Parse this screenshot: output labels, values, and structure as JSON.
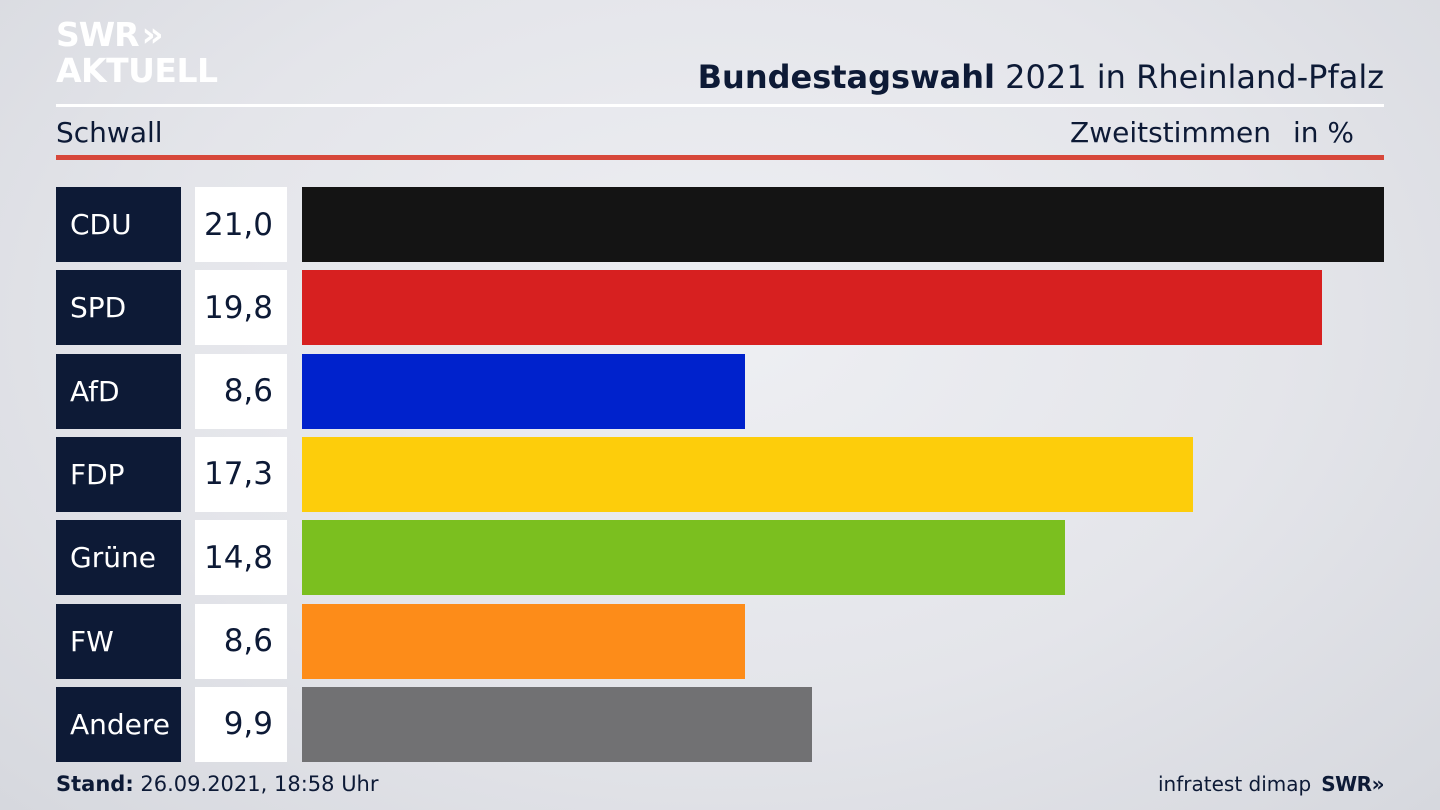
{
  "logo": {
    "line1": "SWR",
    "line1_chevrons": "»",
    "line2": "AKTUELL"
  },
  "header": {
    "title_bold": "Bundestagswahl",
    "title_rest": "2021 in Rheinland-Pfalz",
    "location": "Schwall",
    "metric": "Zweitstimmen",
    "unit": "in %"
  },
  "chart_data": {
    "type": "bar",
    "orientation": "horizontal",
    "categories": [
      "CDU",
      "SPD",
      "AfD",
      "FDP",
      "Grüne",
      "FW",
      "Andere"
    ],
    "values": [
      21.0,
      19.8,
      8.6,
      17.3,
      14.8,
      8.6,
      9.9
    ],
    "value_labels": [
      "21,0",
      "19,8",
      "8,6",
      "17,3",
      "14,8",
      "8,6",
      "9,9"
    ],
    "colors": [
      "#141414",
      "#d72020",
      "#0022cc",
      "#fdcd0b",
      "#7bbf1f",
      "#fd8c19",
      "#717173"
    ],
    "xlim": [
      0,
      21.0
    ]
  },
  "footer": {
    "stand_label": "Stand:",
    "stand_value": "26.09.2021, 18:58 Uhr",
    "source": "infratest dimap",
    "brand": "SWR",
    "brand_chevrons": "»"
  }
}
